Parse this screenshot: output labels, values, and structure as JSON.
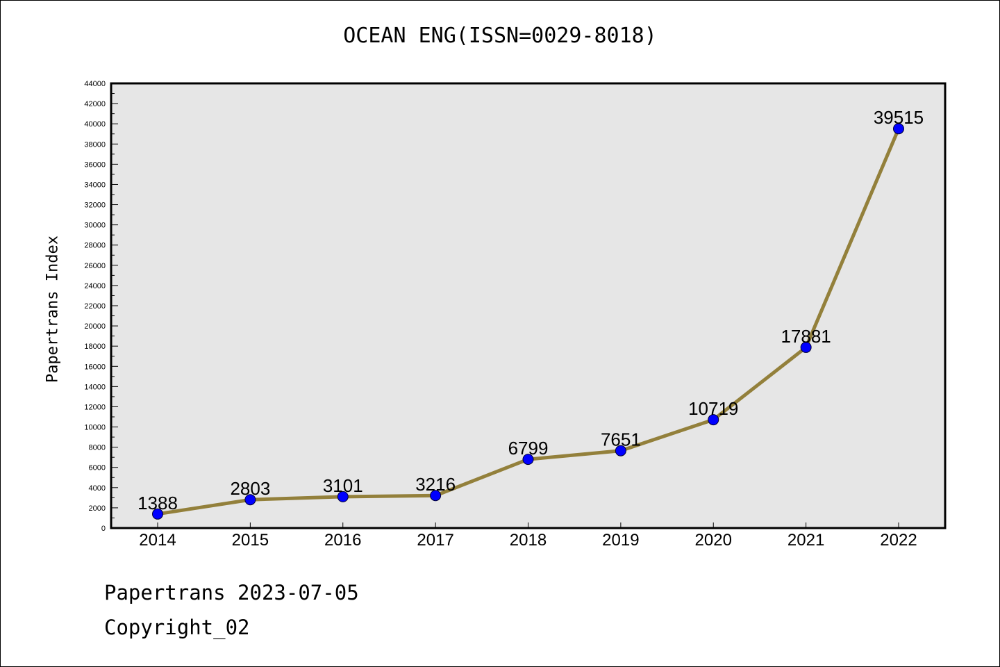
{
  "chart_data": {
    "type": "line",
    "title": "OCEAN ENG(ISSN=0029-8018)",
    "ylabel": "Papertrans Index",
    "xlabel": "",
    "categories": [
      "2014",
      "2015",
      "2016",
      "2017",
      "2018",
      "2019",
      "2020",
      "2021",
      "2022"
    ],
    "values": [
      1388,
      2803,
      3101,
      3216,
      6799,
      7651,
      10719,
      17881,
      39515
    ],
    "ylim": [
      0,
      44000
    ],
    "ytick_step": 2000,
    "grid": false,
    "legend": "none",
    "colors": {
      "line": "#93803b",
      "marker": "#0000ff",
      "plot_bg": "#e6e6e6"
    }
  },
  "footer": {
    "line1": "Papertrans 2023-07-05",
    "line2": "Copyright_02"
  }
}
